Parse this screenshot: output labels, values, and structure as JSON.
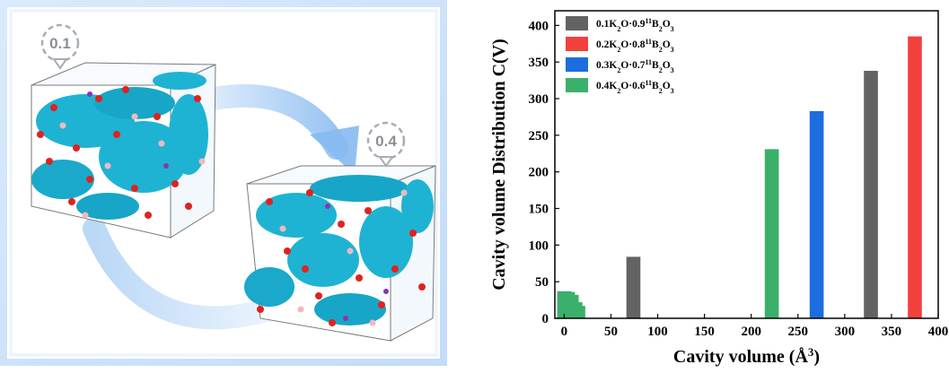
{
  "illustration": {
    "badge_a": "0.1",
    "badge_b": "0.4",
    "colors": {
      "frame": "#cfe3fb",
      "arrow": "#9cc7f3",
      "cavity": "#1fb3d3",
      "oxygen": "#e0221f",
      "boron": "#f2b8bf",
      "potassium": "#8a33b8"
    }
  },
  "chart_data": {
    "type": "bar",
    "xlabel": "Cavity volume (Å3)",
    "xlabel_parts": {
      "main": "Cavity volume (Å",
      "sup": "3",
      "close": ")"
    },
    "ylabel": "Cavity volume Distribution C(V)",
    "xlim": [
      -10,
      400
    ],
    "ylim": [
      0,
      420
    ],
    "xticks": [
      0,
      50,
      100,
      150,
      200,
      250,
      300,
      350,
      400
    ],
    "yticks": [
      0,
      50,
      100,
      150,
      200,
      250,
      300,
      350,
      400
    ],
    "bar_width": 15,
    "legend_position": "top-left",
    "series": [
      {
        "name": "0.1K2O·0.911B2O3",
        "color": "#636363",
        "label": {
          "a": "0.1K",
          "b": "2",
          "c": "O·0.9",
          "d": "11",
          "e": "B",
          "f": "2",
          "g": "O",
          "h": "3"
        },
        "bars": [
          {
            "x": 74,
            "y": 84
          },
          {
            "x": 328,
            "y": 338
          }
        ]
      },
      {
        "name": "0.2K2O·0.811B2O3",
        "color": "#f2403d",
        "label": {
          "a": "0.2K",
          "b": "2",
          "c": "O·0.8",
          "d": "11",
          "e": "B",
          "f": "2",
          "g": "O",
          "h": "3"
        },
        "bars": [
          {
            "x": 375,
            "y": 385
          }
        ]
      },
      {
        "name": "0.3K2O·0.711B2O3",
        "color": "#1d6de0",
        "label": {
          "a": "0.3K",
          "b": "2",
          "c": "O·0.7",
          "d": "11",
          "e": "B",
          "f": "2",
          "g": "O",
          "h": "3"
        },
        "bars": [
          {
            "x": 270,
            "y": 283
          }
        ]
      },
      {
        "name": "0.4K2O·0.611B2O3",
        "color": "#3bb06a",
        "label": {
          "a": "0.4K",
          "b": "2",
          "c": "O·0.6",
          "d": "11",
          "e": "B",
          "f": "2",
          "g": "O",
          "h": "3"
        },
        "bars": [
          {
            "x": 222,
            "y": 231
          },
          {
            "x": 0,
            "y": 37
          },
          {
            "x": 4,
            "y": 36
          },
          {
            "x": 8,
            "y": 32
          },
          {
            "x": 12,
            "y": 22
          },
          {
            "x": 15,
            "y": 17
          }
        ]
      }
    ]
  }
}
